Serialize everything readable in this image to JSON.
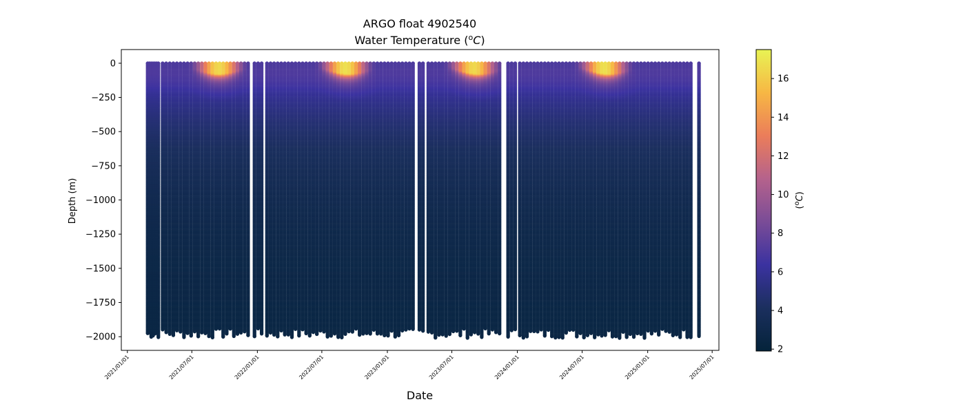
{
  "chart_data": {
    "type": "scatter",
    "title": "ARGO float 4902540",
    "subtitle_prefix": "Water Temperature (",
    "subtitle_unit_sup": "o",
    "subtitle_unit_base": "C",
    "subtitle_suffix": ")",
    "xlabel": "Date",
    "ylabel": "Depth (m)",
    "xlim": [
      "2020-12-15",
      "2025-07-20"
    ],
    "ylim": [
      -2100,
      100
    ],
    "x_ticks": [
      "2021/01/01",
      "2021/07/01",
      "2022/01/01",
      "2022/07/01",
      "2023/01/01",
      "2023/07/01",
      "2024/01/01",
      "2024/07/01",
      "2025/01/01",
      "2025/07/01"
    ],
    "y_ticks": [
      0,
      -250,
      -500,
      -750,
      -1000,
      -1250,
      -1500,
      -1750,
      -2000
    ],
    "colorbar": {
      "label_sup": "o",
      "label_base": "C",
      "ticks": [
        2,
        4,
        6,
        8,
        10,
        12,
        14,
        16
      ],
      "range": [
        1.9,
        17.5
      ],
      "colormap": "thermal",
      "stops": [
        "#04233a",
        "#1b2f5e",
        "#3b32a0",
        "#7a4c97",
        "#b5628c",
        "#eb7d5a",
        "#f7b744",
        "#e8f354"
      ]
    },
    "profile_segments": [
      {
        "start": "2021-02-27",
        "end": "2021-03-31",
        "interval_days": 5
      },
      {
        "start": "2021-04-10",
        "end": "2021-12-14",
        "interval_days": 10
      },
      {
        "start": "2021-12-24",
        "end": "2022-01-13",
        "interval_days": 10
      },
      {
        "start": "2022-01-28",
        "end": "2023-03-17",
        "interval_days": 10
      },
      {
        "start": "2023-04-01",
        "end": "2023-04-11",
        "interval_days": 10
      },
      {
        "start": "2023-04-26",
        "end": "2023-11-21",
        "interval_days": 10
      },
      {
        "start": "2023-12-06",
        "end": "2023-12-26",
        "interval_days": 10
      },
      {
        "start": "2024-01-08",
        "end": "2025-05-10",
        "interval_days": 10
      },
      {
        "start": "2025-05-25",
        "end": "2025-05-25",
        "interval_days": 10
      }
    ],
    "max_depth_range": [
      -2010,
      -1940
    ],
    "summer_surface_max": [
      {
        "date": "2021-09-15",
        "temp": 16.5
      },
      {
        "date": "2022-09-05",
        "temp": 16.8
      },
      {
        "date": "2023-09-01",
        "temp": 16.5
      },
      {
        "date": "2024-09-01",
        "temp": 16.8
      }
    ]
  }
}
